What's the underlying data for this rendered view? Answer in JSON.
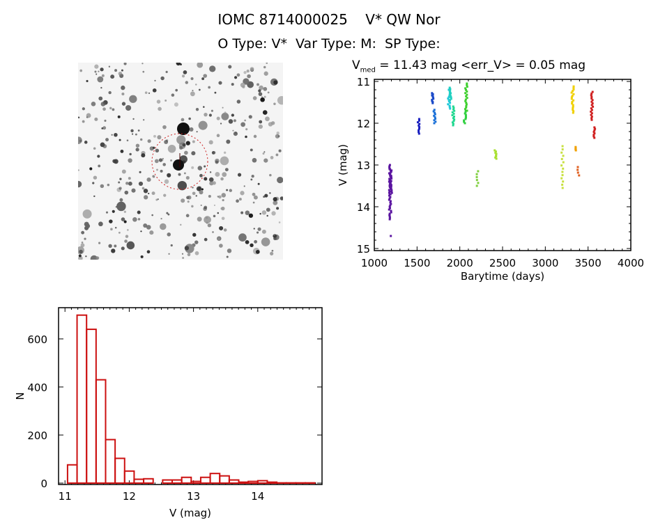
{
  "header": {
    "title": "IOMC 8714000025    V* QW Nor",
    "subtitle": "O Type: V*  Var Type: M:  SP Type:",
    "vmed_label": "V",
    "vmed_sub": "med",
    "vmed_text": " = 11.43 mag <err_V> = 0.05 mag"
  },
  "finder": {
    "target_marker_color": "#cc2020"
  },
  "chart_data": [
    {
      "type": "scatter",
      "title": "V_med = 11.43 mag <err_V> = 0.05 mag",
      "xlabel": "Barytime (days)",
      "ylabel": "V (mag)",
      "xlim": [
        1000,
        4000
      ],
      "ylim": [
        15.05,
        10.95
      ],
      "y_reversed": true,
      "xticks": [
        "1000",
        "1500",
        "2000",
        "2500",
        "3000",
        "3500",
        "4000"
      ],
      "yticks": [
        "11",
        "12",
        "13",
        "14",
        "15"
      ],
      "segments": [
        {
          "t": 1185,
          "v": [
            13.0,
            14.3
          ],
          "color": "#5a14a0",
          "n": 40
        },
        {
          "t": 1195,
          "v": [
            13.1,
            13.7
          ],
          "color": "#5a14a0",
          "n": 20
        },
        {
          "t": 1190,
          "v": [
            14.7,
            14.7
          ],
          "color": "#5a14a0",
          "n": 1
        },
        {
          "t": 1520,
          "v": [
            11.9,
            12.25
          ],
          "color": "#1a20c0",
          "n": 10
        },
        {
          "t": 1683,
          "v": [
            11.28,
            11.52
          ],
          "color": "#1848c8",
          "n": 10
        },
        {
          "t": 1705,
          "v": [
            11.68,
            12.0
          ],
          "color": "#1a70d8",
          "n": 10
        },
        {
          "t": 1875,
          "v": [
            11.2,
            11.65
          ],
          "color": "#20c8d8",
          "n": 14
        },
        {
          "t": 1890,
          "v": [
            11.15,
            11.45
          ],
          "color": "#20d0c0",
          "n": 10
        },
        {
          "t": 1925,
          "v": [
            11.6,
            12.05
          ],
          "color": "#20d890",
          "n": 14
        },
        {
          "t": 2060,
          "v": [
            11.7,
            12.0
          ],
          "color": "#30d040",
          "n": 10
        },
        {
          "t": 2075,
          "v": [
            11.05,
            11.7
          ],
          "color": "#40d030",
          "n": 18
        },
        {
          "t": 2210,
          "v": [
            13.15,
            13.5
          ],
          "color": "#80d040",
          "n": 6
        },
        {
          "t": 2420,
          "v": [
            12.65,
            12.85
          ],
          "color": "#a8e030",
          "n": 8
        },
        {
          "t": 3200,
          "v": [
            12.55,
            13.55
          ],
          "color": "#c8e040",
          "n": 14
        },
        {
          "t": 3320,
          "v": [
            11.12,
            11.75
          ],
          "color": "#f0d000",
          "n": 18
        },
        {
          "t": 3365,
          "v": [
            12.57,
            12.65
          ],
          "color": "#f0a000",
          "n": 4
        },
        {
          "t": 3385,
          "v": [
            13.05,
            13.25
          ],
          "color": "#e06020",
          "n": 4
        },
        {
          "t": 3545,
          "v": [
            11.25,
            11.92
          ],
          "color": "#d02020",
          "n": 18
        },
        {
          "t": 3570,
          "v": [
            12.1,
            12.35
          ],
          "color": "#d02020",
          "n": 8
        }
      ]
    },
    {
      "type": "bar",
      "title": "",
      "xlabel": "V (mag)",
      "ylabel": "N",
      "xlim": [
        10.9,
        15.0
      ],
      "ylim": [
        0,
        730
      ],
      "xticks": [
        "11",
        "12",
        "13",
        "14"
      ],
      "yticks": [
        "0",
        "200",
        "400",
        "600"
      ],
      "bin_start": 11.04,
      "bin_width": 0.148,
      "values": [
        76,
        699,
        640,
        430,
        181,
        103,
        50,
        16,
        18,
        0,
        13,
        13,
        24,
        7,
        24,
        40,
        30,
        13,
        4,
        7,
        10,
        4,
        1,
        1,
        1,
        1
      ],
      "color": "#cc1010"
    }
  ]
}
